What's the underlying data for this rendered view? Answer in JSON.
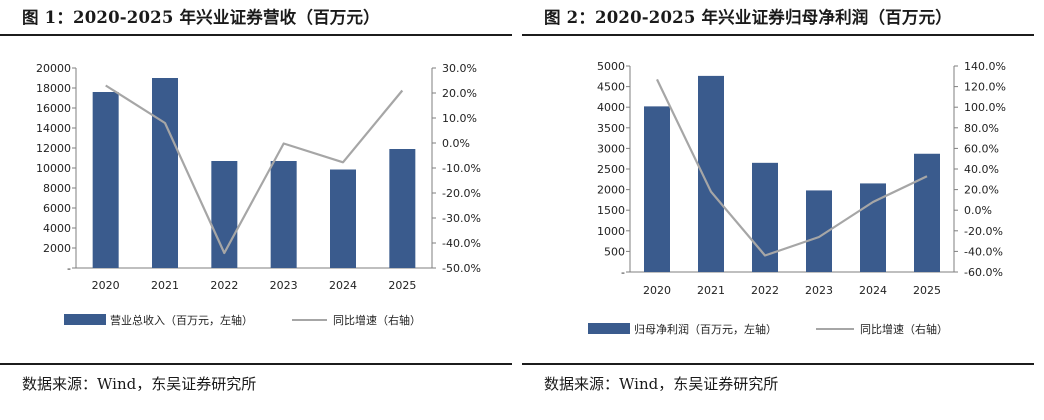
{
  "colors": {
    "bar": "#3a5b8d",
    "line": "#a6a6a6",
    "rule": "#1c1c1c"
  },
  "charts": [
    {
      "title": "图 1：2020-2025 年兴业证券营收（百万元）",
      "source": "数据来源：Wind，东吴证券研究所",
      "legend": {
        "bar": "营业总收入（百万元，左轴）",
        "line": "同比增速（右轴）"
      }
    },
    {
      "title": "图 2：2020-2025 年兴业证券归母净利润（百万元）",
      "source": "数据来源：Wind，东吴证券研究所",
      "legend": {
        "bar": "归母净利润（百万元，左轴）",
        "line": "同比增速（右轴）"
      }
    }
  ],
  "chart_data": [
    {
      "type": "bar",
      "title": "图 1：2020-2025 年兴业证券营收（百万元）",
      "categories": [
        "2020",
        "2021",
        "2022",
        "2023",
        "2024",
        "2025"
      ],
      "series": [
        {
          "name": "营业总收入（百万元，左轴）",
          "type": "bar",
          "axis": "left",
          "values": [
            17600,
            19000,
            10700,
            10700,
            9850,
            11900
          ]
        },
        {
          "name": "同比增速（右轴）",
          "type": "line",
          "axis": "right",
          "values": [
            23.0,
            8.0,
            -44.0,
            -0.2,
            -7.7,
            21.0
          ]
        }
      ],
      "y_left": {
        "min": 0,
        "max": 20000,
        "step": 2000,
        "tick_labels": [
          "-",
          "2000",
          "4000",
          "6000",
          "8000",
          "10000",
          "12000",
          "14000",
          "16000",
          "18000",
          "20000"
        ]
      },
      "y_right": {
        "min": -50,
        "max": 30,
        "step": 10,
        "tick_labels": [
          "-50.0%",
          "-40.0%",
          "-30.0%",
          "-20.0%",
          "-10.0%",
          "0.0%",
          "10.0%",
          "20.0%",
          "30.0%"
        ]
      },
      "grid": false,
      "legend_position": "bottom"
    },
    {
      "type": "bar",
      "title": "图 2：2020-2025 年兴业证券归母净利润（百万元）",
      "categories": [
        "2020",
        "2021",
        "2022",
        "2023",
        "2024",
        "2025"
      ],
      "series": [
        {
          "name": "归母净利润（百万元，左轴）",
          "type": "bar",
          "axis": "left",
          "values": [
            4020,
            4760,
            2650,
            1980,
            2150,
            2870
          ]
        },
        {
          "name": "同比增速（右轴）",
          "type": "line",
          "axis": "right",
          "values": [
            127.0,
            18.0,
            -44.0,
            -26.0,
            8.0,
            33.0
          ]
        }
      ],
      "y_left": {
        "min": 0,
        "max": 5000,
        "step": 500,
        "tick_labels": [
          "-",
          "500",
          "1000",
          "1500",
          "2000",
          "2500",
          "3000",
          "3500",
          "4000",
          "4500",
          "5000"
        ]
      },
      "y_right": {
        "min": -60,
        "max": 140,
        "step": 20,
        "tick_labels": [
          "-60.0%",
          "-40.0%",
          "-20.0%",
          "0.0%",
          "20.0%",
          "40.0%",
          "60.0%",
          "80.0%",
          "100.0%",
          "120.0%",
          "140.0%"
        ]
      },
      "grid": false,
      "legend_position": "bottom"
    }
  ]
}
